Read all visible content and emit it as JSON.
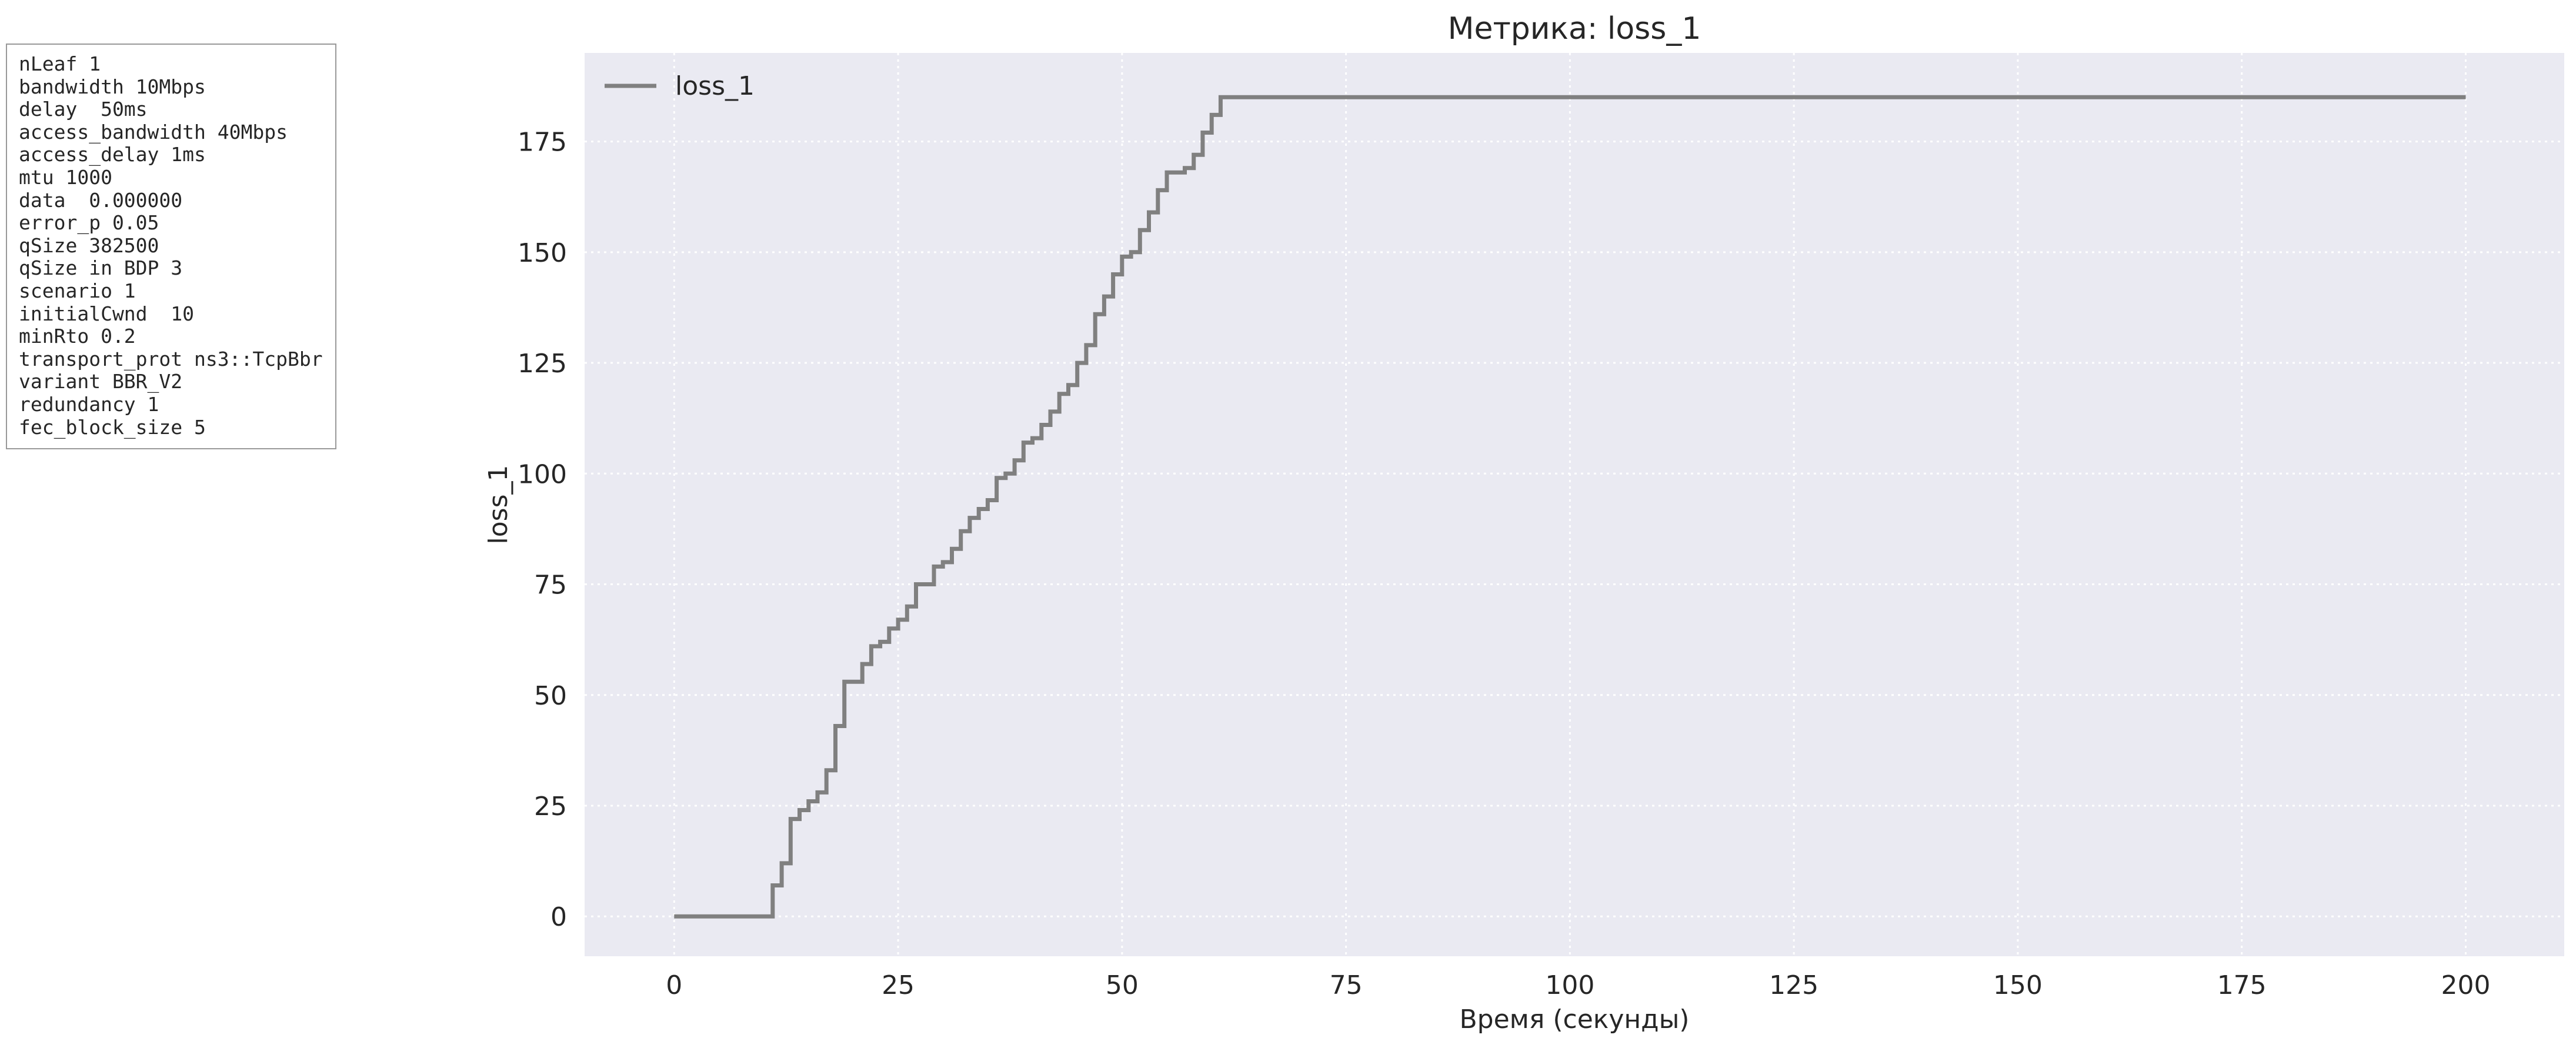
{
  "params": [
    "nLeaf 1",
    "bandwidth 10Mbps",
    "delay  50ms",
    "access_bandwidth 40Mbps",
    "access_delay 1ms",
    "mtu 1000",
    "data  0.000000",
    "error_p 0.05",
    "qSize 382500",
    "qSize in BDP 3",
    "scenario 1",
    "initialCwnd  10",
    "minRto 0.2",
    "transport_prot ns3::TcpBbr",
    "variant BBR_V2",
    "redundancy 1",
    "fec_block_size 5"
  ],
  "chart_data": {
    "type": "line",
    "title": "Метрика: loss_1",
    "xlabel": "Время (секунды)",
    "ylabel": "loss_1",
    "xlim": [
      -10,
      211
    ],
    "ylim": [
      -9,
      195
    ],
    "x_ticks": [
      0,
      25,
      50,
      75,
      100,
      125,
      150,
      175,
      200
    ],
    "y_ticks": [
      0,
      25,
      50,
      75,
      100,
      125,
      150,
      175
    ],
    "grid": true,
    "legend": "top-left",
    "step": "post",
    "series": [
      {
        "name": "loss_1",
        "color": "#808080",
        "points": [
          [
            0,
            0
          ],
          [
            11,
            0
          ],
          [
            11,
            7
          ],
          [
            12,
            7
          ],
          [
            12,
            12
          ],
          [
            13,
            12
          ],
          [
            13,
            22
          ],
          [
            14,
            22
          ],
          [
            14,
            24
          ],
          [
            15,
            24
          ],
          [
            15,
            26
          ],
          [
            16,
            26
          ],
          [
            16,
            28
          ],
          [
            17,
            28
          ],
          [
            17,
            33
          ],
          [
            18,
            33
          ],
          [
            18,
            43
          ],
          [
            19,
            43
          ],
          [
            19,
            53
          ],
          [
            21,
            53
          ],
          [
            21,
            57
          ],
          [
            22,
            57
          ],
          [
            22,
            61
          ],
          [
            23,
            61
          ],
          [
            23,
            62
          ],
          [
            24,
            62
          ],
          [
            24,
            65
          ],
          [
            25,
            65
          ],
          [
            25,
            67
          ],
          [
            26,
            67
          ],
          [
            26,
            70
          ],
          [
            27,
            70
          ],
          [
            27,
            75
          ],
          [
            29,
            75
          ],
          [
            29,
            79
          ],
          [
            30,
            79
          ],
          [
            30,
            80
          ],
          [
            31,
            80
          ],
          [
            31,
            83
          ],
          [
            32,
            83
          ],
          [
            32,
            87
          ],
          [
            33,
            87
          ],
          [
            33,
            90
          ],
          [
            34,
            90
          ],
          [
            34,
            92
          ],
          [
            35,
            92
          ],
          [
            35,
            94
          ],
          [
            36,
            94
          ],
          [
            36,
            99
          ],
          [
            37,
            99
          ],
          [
            37,
            100
          ],
          [
            38,
            100
          ],
          [
            38,
            103
          ],
          [
            39,
            103
          ],
          [
            39,
            107
          ],
          [
            40,
            107
          ],
          [
            40,
            108
          ],
          [
            41,
            108
          ],
          [
            41,
            111
          ],
          [
            42,
            111
          ],
          [
            42,
            114
          ],
          [
            43,
            114
          ],
          [
            43,
            118
          ],
          [
            44,
            118
          ],
          [
            44,
            120
          ],
          [
            45,
            120
          ],
          [
            45,
            125
          ],
          [
            46,
            125
          ],
          [
            46,
            129
          ],
          [
            47,
            129
          ],
          [
            47,
            136
          ],
          [
            48,
            136
          ],
          [
            48,
            140
          ],
          [
            49,
            140
          ],
          [
            49,
            145
          ],
          [
            50,
            145
          ],
          [
            50,
            149
          ],
          [
            51,
            149
          ],
          [
            51,
            150
          ],
          [
            52,
            150
          ],
          [
            52,
            155
          ],
          [
            53,
            155
          ],
          [
            53,
            159
          ],
          [
            54,
            159
          ],
          [
            54,
            164
          ],
          [
            55,
            164
          ],
          [
            55,
            168
          ],
          [
            57,
            168
          ],
          [
            57,
            169
          ],
          [
            58,
            169
          ],
          [
            58,
            172
          ],
          [
            59,
            172
          ],
          [
            59,
            177
          ],
          [
            60,
            177
          ],
          [
            60,
            181
          ],
          [
            61,
            181
          ],
          [
            61,
            185
          ],
          [
            200,
            185
          ]
        ]
      }
    ]
  }
}
